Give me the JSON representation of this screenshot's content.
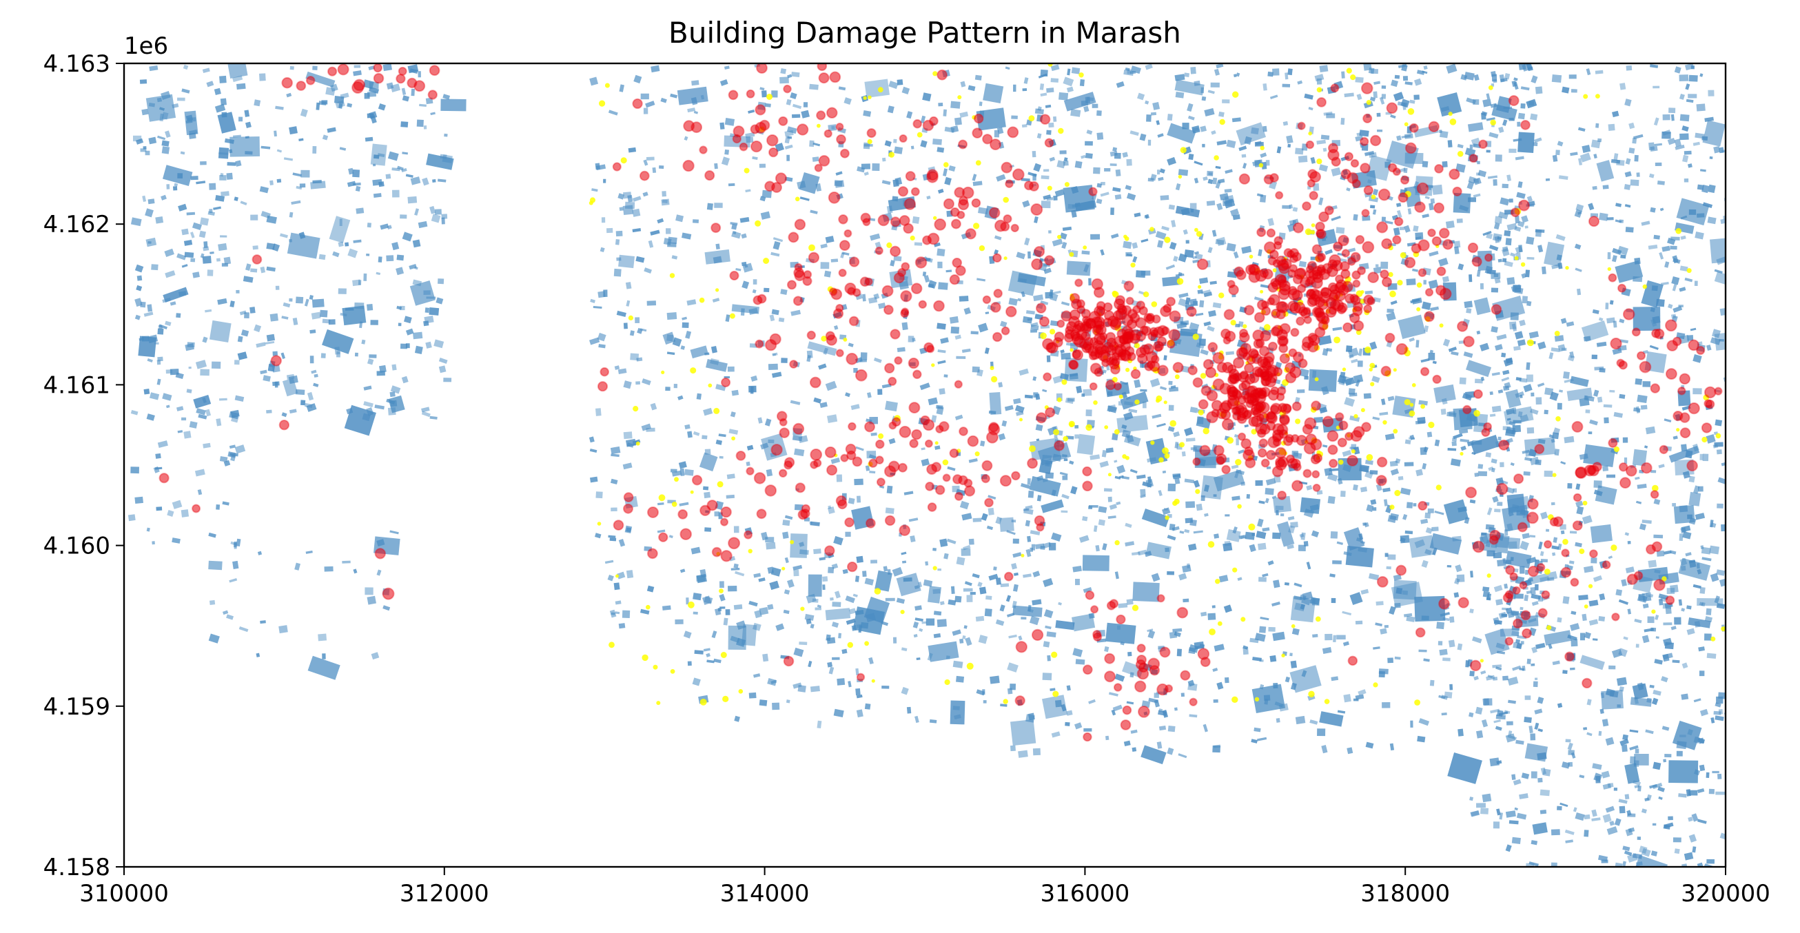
{
  "chart_data": {
    "type": "scatter",
    "title": "Building Damage Pattern in Marash",
    "xlabel": "",
    "ylabel": "",
    "xlim": [
      310000,
      320000
    ],
    "ylim": [
      4158000,
      4163000
    ],
    "y_offset_label": "1e6",
    "x_ticks": [
      {
        "value": 310000,
        "label": "310000"
      },
      {
        "value": 312000,
        "label": "312000"
      },
      {
        "value": 314000,
        "label": "314000"
      },
      {
        "value": 316000,
        "label": "316000"
      },
      {
        "value": 318000,
        "label": "318000"
      },
      {
        "value": 320000,
        "label": "320000"
      }
    ],
    "y_ticks": [
      {
        "value": 4158000,
        "label": "4.158"
      },
      {
        "value": 4159000,
        "label": "4.159"
      },
      {
        "value": 4160000,
        "label": "4.160"
      },
      {
        "value": 4161000,
        "label": "4.161"
      },
      {
        "value": 4162000,
        "label": "4.162"
      },
      {
        "value": 4163000,
        "label": "4.163"
      }
    ],
    "grid": false,
    "legend": "none",
    "layers": {
      "buildings": {
        "color": "#4a8cc2",
        "clusters": [
          {
            "x": [
              310050,
              312000
            ],
            "y": [
              4160800,
              4163000
            ],
            "density": 420
          },
          {
            "x": [
              310000,
              310700
            ],
            "y": [
              4160000,
              4160900
            ],
            "density": 40
          },
          {
            "x": [
              310500,
              311700
            ],
            "y": [
              4159300,
              4160100
            ],
            "density": 30
          },
          {
            "x": [
              312900,
              315800
            ],
            "y": [
              4159500,
              4163000
            ],
            "density": 700
          },
          {
            "x": [
              315600,
              318800
            ],
            "y": [
              4160000,
              4163000
            ],
            "density": 1100
          },
          {
            "x": [
              318500,
              320000
            ],
            "y": [
              4159500,
              4163000
            ],
            "density": 520
          },
          {
            "x": [
              315500,
              318800
            ],
            "y": [
              4158700,
              4160100
            ],
            "density": 320
          },
          {
            "x": [
              318400,
              320000
            ],
            "y": [
              4158000,
              4160000
            ],
            "density": 330
          },
          {
            "x": [
              313500,
              315600
            ],
            "y": [
              4158900,
              4159900
            ],
            "density": 140
          }
        ]
      },
      "moderate_damage": {
        "color": "#ffff00",
        "clusters": [
          {
            "x": [
              312900,
              320000
            ],
            "y": [
              4159000,
              4163000
            ],
            "density": 220
          },
          {
            "x": [
              315800,
              318200
            ],
            "y": [
              4160500,
              4162000
            ],
            "density": 140
          }
        ]
      },
      "severe_damage": {
        "color": "#e8000b",
        "clusters": [
          {
            "cx": 316200,
            "cy": 4161300,
            "sx": 280,
            "sy": 200,
            "n": 170
          },
          {
            "cx": 317050,
            "cy": 4161000,
            "sx": 180,
            "sy": 260,
            "n": 150
          },
          {
            "cx": 317400,
            "cy": 4161600,
            "sx": 320,
            "sy": 250,
            "n": 160
          },
          {
            "cx": 317300,
            "cy": 4160600,
            "sx": 350,
            "sy": 200,
            "n": 60
          },
          {
            "cx": 314700,
            "cy": 4161600,
            "sx": 650,
            "sy": 420,
            "n": 70
          },
          {
            "cx": 314800,
            "cy": 4160500,
            "sx": 900,
            "sy": 350,
            "n": 90
          },
          {
            "cx": 315300,
            "cy": 4162200,
            "sx": 500,
            "sy": 450,
            "n": 55
          },
          {
            "cx": 318200,
            "cy": 4161800,
            "sx": 400,
            "sy": 600,
            "n": 45
          },
          {
            "cx": 317700,
            "cy": 4162300,
            "sx": 500,
            "sy": 300,
            "n": 40
          },
          {
            "cx": 318800,
            "cy": 4160000,
            "sx": 700,
            "sy": 700,
            "n": 60
          },
          {
            "cx": 316300,
            "cy": 4159300,
            "sx": 500,
            "sy": 350,
            "n": 35
          },
          {
            "cx": 314200,
            "cy": 4162600,
            "sx": 700,
            "sy": 300,
            "n": 40
          },
          {
            "cx": 319600,
            "cy": 4160900,
            "sx": 350,
            "sy": 700,
            "n": 40
          },
          {
            "cx": 311500,
            "cy": 4162900,
            "sx": 500,
            "sy": 100,
            "n": 14
          },
          {
            "cx": 313600,
            "cy": 4160200,
            "sx": 300,
            "sy": 200,
            "n": 14
          }
        ],
        "isolated_points": [
          [
            310250,
            4160420
          ],
          [
            310450,
            4160230
          ],
          [
            310830,
            4161780
          ],
          [
            310950,
            4161150
          ],
          [
            311000,
            4160750
          ],
          [
            311300,
            4162950
          ],
          [
            311600,
            4159950
          ],
          [
            311650,
            4159700
          ],
          [
            313150,
            4160300
          ],
          [
            313300,
            4159950
          ],
          [
            313250,
            4162300
          ],
          [
            313000,
            4161080
          ],
          [
            314150,
            4159280
          ],
          [
            314600,
            4159180
          ]
        ]
      }
    }
  }
}
